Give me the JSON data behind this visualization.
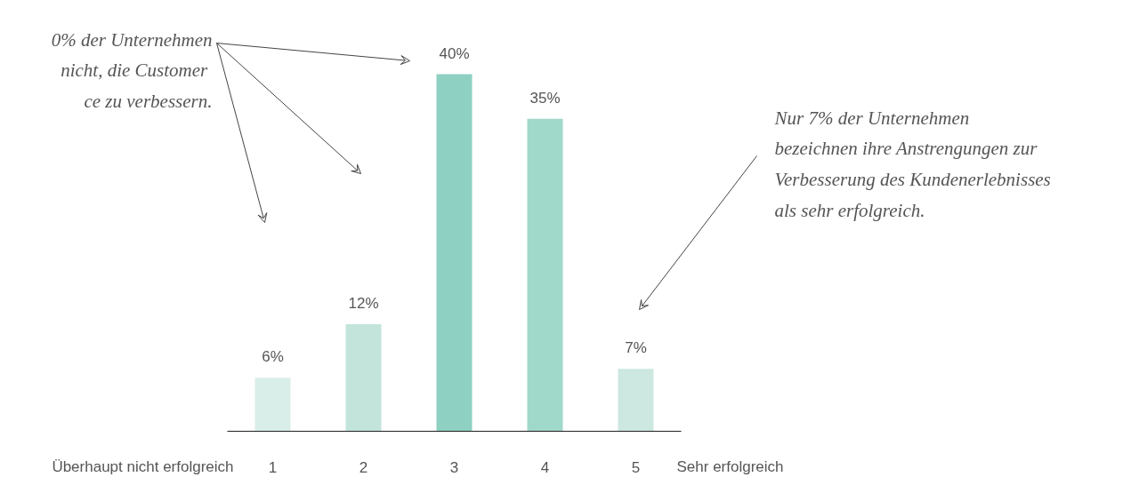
{
  "chart_data": {
    "type": "bar",
    "categories": [
      "1",
      "2",
      "3",
      "4",
      "5"
    ],
    "values": [
      6,
      12,
      40,
      35,
      7
    ],
    "colors": [
      "#d9eee8",
      "#c3e4db",
      "#8ed0c2",
      "#a0d8c9",
      "#cce8e0"
    ],
    "value_labels": [
      "6%",
      "12%",
      "40%",
      "35%",
      "7%"
    ],
    "relative": false,
    "annotations": [
      "0% der Unternehmen\n nicht, die Customer\nce zu verbessern.",
      "Nur 7% der Unternehmen\nbezeichnen ihre Anstrengungen zur\nVerbesserung des Kundenerlebnisses\nals sehr erfolgreich.",
      "Überhaupt nicht erfolgreich",
      "Sehr erfolgreich"
    ]
  }
}
